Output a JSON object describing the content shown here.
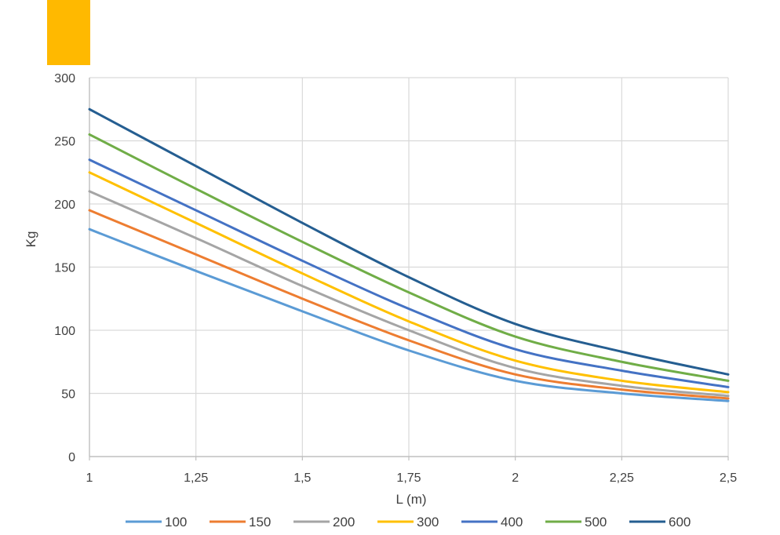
{
  "accent_color": "#FFB900",
  "chart_data": {
    "type": "line",
    "title": "",
    "xlabel": "L (m)",
    "ylabel": "Kg",
    "x": [
      1,
      1.25,
      1.5,
      1.75,
      2,
      2.25,
      2.5
    ],
    "x_tick_labels": [
      "1",
      "1,25",
      "1,5",
      "1,75",
      "2",
      "2,25",
      "2,5"
    ],
    "xlim": [
      1,
      2.5
    ],
    "ylim": [
      0,
      300
    ],
    "y_ticks": [
      0,
      50,
      100,
      150,
      200,
      250,
      300
    ],
    "y_tick_labels": [
      "0",
      "50",
      "100",
      "150",
      "200",
      "250",
      "300"
    ],
    "grid": true,
    "legend_position": "bottom",
    "series": [
      {
        "name": "100",
        "color": "#5B9BD5",
        "values": [
          180,
          147,
          115,
          84,
          60,
          50,
          44
        ]
      },
      {
        "name": "150",
        "color": "#ED7D31",
        "values": [
          195,
          160,
          125,
          92,
          65,
          53,
          46
        ]
      },
      {
        "name": "200",
        "color": "#A5A5A5",
        "values": [
          210,
          173,
          135,
          100,
          70,
          56,
          48
        ]
      },
      {
        "name": "300",
        "color": "#FFC000",
        "values": [
          225,
          185,
          145,
          107,
          76,
          60,
          51
        ]
      },
      {
        "name": "400",
        "color": "#4472C4",
        "values": [
          235,
          195,
          155,
          117,
          85,
          68,
          55
        ]
      },
      {
        "name": "500",
        "color": "#70AD47",
        "values": [
          255,
          212,
          170,
          130,
          95,
          75,
          60
        ]
      },
      {
        "name": "600",
        "color": "#255E91",
        "values": [
          275,
          230,
          185,
          142,
          105,
          83,
          65
        ]
      }
    ]
  }
}
